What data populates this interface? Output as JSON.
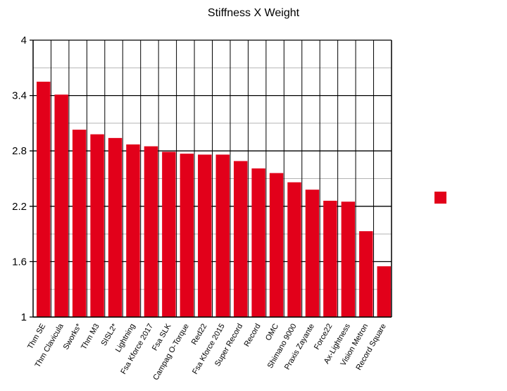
{
  "colors": {
    "bar": "#e2001a",
    "axis": "#000000",
    "minor_grid": "#b3b3b3"
  },
  "chart_data": {
    "type": "bar",
    "title": "Stiffness X Weight",
    "xlabel": "",
    "ylabel": "",
    "ylim": [
      1,
      4
    ],
    "yticks": [
      "1",
      "1.6",
      "2.2",
      "2.8",
      "3.4",
      "4"
    ],
    "grid": true,
    "legend": {
      "placement": "right",
      "entries": [
        ""
      ]
    },
    "categories": [
      "Thm SE",
      "Thm Clavicula",
      "Sworks*",
      "Thm M3",
      "SISL2*",
      "Lightning",
      "Fsa Kforce 2017",
      "Fsa SLK",
      "Campag O-Torque",
      "Red22",
      "Fsa Kforce 2015",
      "Super Record",
      "Record",
      "OMC",
      "Shimano 9000",
      "Praxis Zayante",
      "Force22",
      "Ax-Lightness",
      "Vision Metron",
      "Record Square"
    ],
    "series": [
      {
        "values": [
          3.55,
          3.41,
          3.03,
          2.98,
          2.94,
          2.87,
          2.85,
          2.79,
          2.77,
          2.76,
          2.76,
          2.69,
          2.61,
          2.56,
          2.46,
          2.38,
          2.26,
          2.25,
          1.93,
          1.55
        ]
      }
    ]
  }
}
